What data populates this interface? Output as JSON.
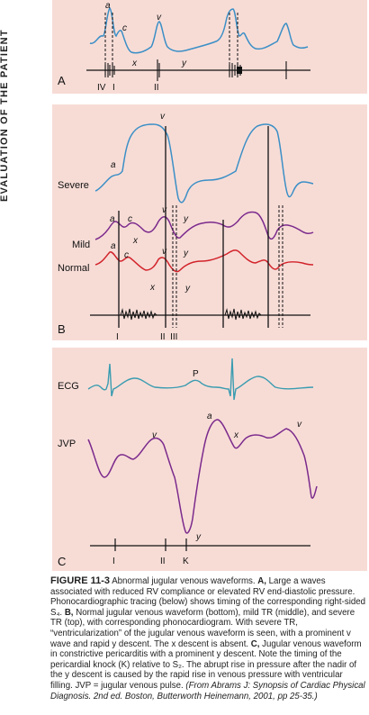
{
  "side_header": "EVALUATION OF THE PATIENT",
  "panel_a": {
    "letter": "A",
    "wave_labels": {
      "a": "a",
      "c": "c",
      "v": "v",
      "x": "x",
      "y": "y"
    },
    "sounds": {
      "iv": "IV",
      "i": "I",
      "ii": "II"
    }
  },
  "panel_b": {
    "letter": "B",
    "trace_labels": {
      "severe": "Severe",
      "mild": "Mild",
      "normal": "Normal"
    },
    "wave_labels": {
      "a": "a",
      "c": "c",
      "v": "v",
      "x": "x",
      "y": "y"
    },
    "sounds": {
      "i": "I",
      "ii_iii": "II  III"
    }
  },
  "panel_c": {
    "letter": "C",
    "trace_labels": {
      "ecg": "ECG",
      "jvp": "JVP"
    },
    "wave_labels": {
      "p": "P",
      "a": "a",
      "v": "v",
      "x": "x",
      "y": "y"
    },
    "sounds": {
      "i": "I",
      "ii": "II",
      "k": "K"
    }
  },
  "caption": {
    "figure_label": "FIGURE 11-3",
    "text_1": " Abnormal jugular venous waveforms. ",
    "bold_a": "A,",
    "text_2": " Large a waves associated with reduced RV compliance or elevated RV end-diastolic pressure. Phonocardiographic tracing (below) shows timing of the corresponding right-sided S₄. ",
    "bold_b": "B,",
    "text_3": " Normal jugular venous waveform (bottom), mild TR (middle), and severe TR (top), with corresponding phonocardiogram. With severe TR, “ventricularization” of the jugular venous waveform is seen, with a prominent v wave and rapid y descent. The x descent is absent. ",
    "bold_c": "C,",
    "text_4": " Jugular venous waveform in constrictive pericarditis with a prominent y descent. Note the timing of the pericardial knock (K) relative to S₂. The abrupt rise in pressure after the nadir of the y descent is caused by the rapid rise in venous pressure with ventricular filling. JVP = jugular venous pulse. ",
    "source": "(From Abrams J: Synopsis of Cardiac Physical Diagnosis. 2nd ed. Boston, Butterworth Heinemann, 2001, pp 25-35.)"
  },
  "colors": {
    "panel_bg": "#f7dcd6",
    "blue_trace": "#3b8fc6",
    "purple_trace": "#7b2a8c",
    "red_trace": "#d2232a",
    "ecg_trace": "#3a9cb0"
  }
}
